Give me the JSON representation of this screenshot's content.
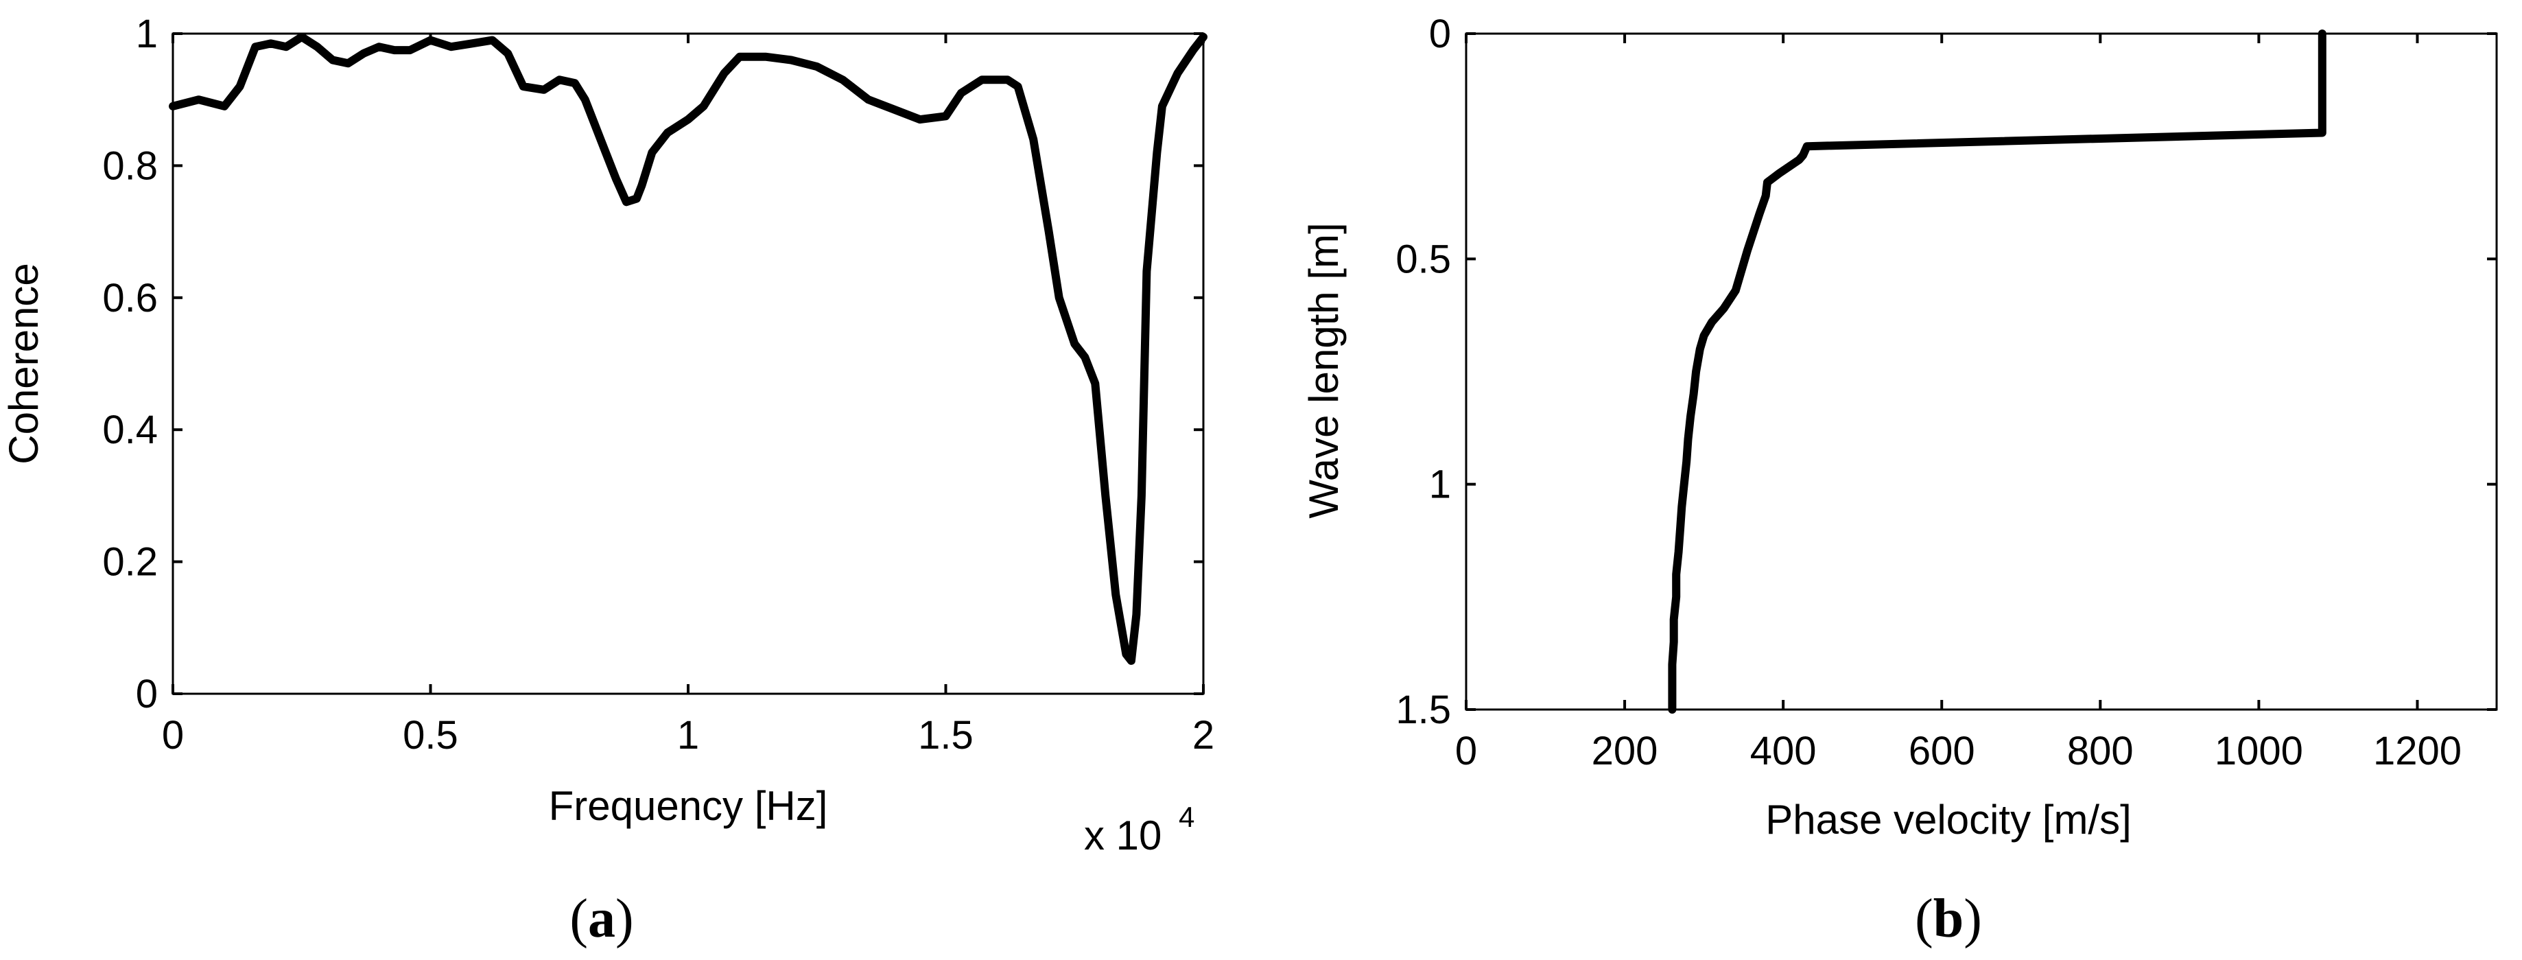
{
  "chart_data": [
    {
      "type": "line",
      "panel_label": "a",
      "title": "",
      "xlabel": "Frequency [Hz]",
      "ylabel": "Coherence",
      "x_multiplier_label": "x 10",
      "x_multiplier_exponent": "4",
      "xlim": [
        0,
        2
      ],
      "ylim": [
        0,
        1
      ],
      "xticks": [
        0,
        0.5,
        1,
        1.5,
        2
      ],
      "xtick_labels": [
        "0",
        "0.5",
        "1",
        "1.5",
        "2"
      ],
      "yticks": [
        0,
        0.2,
        0.4,
        0.6,
        0.8,
        1
      ],
      "ytick_labels": [
        "0",
        "0.2",
        "0.4",
        "0.6",
        "0.8",
        "1"
      ],
      "grid": false,
      "series": [
        {
          "color": "#000000",
          "x": [
            0,
            0.05,
            0.1,
            0.13,
            0.16,
            0.19,
            0.22,
            0.25,
            0.28,
            0.31,
            0.34,
            0.37,
            0.4,
            0.43,
            0.46,
            0.5,
            0.54,
            0.58,
            0.62,
            0.65,
            0.68,
            0.72,
            0.75,
            0.78,
            0.8,
            0.83,
            0.86,
            0.88,
            0.9,
            0.91,
            0.93,
            0.96,
            1.0,
            1.03,
            1.07,
            1.1,
            1.15,
            1.2,
            1.25,
            1.3,
            1.35,
            1.4,
            1.45,
            1.5,
            1.53,
            1.57,
            1.62,
            1.64,
            1.67,
            1.7,
            1.72,
            1.75,
            1.77,
            1.79,
            1.81,
            1.83,
            1.85,
            1.86,
            1.87,
            1.88,
            1.89,
            1.91,
            1.92,
            1.95,
            1.98,
            2.0
          ],
          "y": [
            0.89,
            0.9,
            0.89,
            0.92,
            0.98,
            0.985,
            0.98,
            0.995,
            0.98,
            0.96,
            0.955,
            0.97,
            0.98,
            0.975,
            0.975,
            0.99,
            0.98,
            0.985,
            0.99,
            0.97,
            0.92,
            0.915,
            0.93,
            0.925,
            0.9,
            0.84,
            0.78,
            0.745,
            0.75,
            0.77,
            0.82,
            0.85,
            0.87,
            0.89,
            0.94,
            0.965,
            0.965,
            0.96,
            0.95,
            0.93,
            0.9,
            0.885,
            0.87,
            0.875,
            0.91,
            0.93,
            0.93,
            0.92,
            0.84,
            0.7,
            0.6,
            0.53,
            0.51,
            0.47,
            0.3,
            0.15,
            0.06,
            0.05,
            0.12,
            0.3,
            0.64,
            0.82,
            0.89,
            0.94,
            0.975,
            0.995
          ]
        }
      ]
    },
    {
      "type": "line",
      "panel_label": "b",
      "title": "",
      "xlabel": "Phase velocity [m/s]",
      "ylabel": "Wave length [m]",
      "xlim": [
        0,
        1300
      ],
      "ylim": [
        0,
        1.5
      ],
      "y_reversed": true,
      "xticks": [
        0,
        200,
        400,
        600,
        800,
        1000,
        1200
      ],
      "xtick_labels": [
        "0",
        "200",
        "400",
        "600",
        "800",
        "1000",
        "1200"
      ],
      "yticks": [
        0,
        0.5,
        1,
        1.5
      ],
      "ytick_labels": [
        "0",
        "0.5",
        "1",
        "1.5"
      ],
      "grid": false,
      "series": [
        {
          "color": "#000000",
          "x": [
            1080,
            1080,
            430,
            425,
            420,
            395,
            380,
            378,
            370,
            355,
            340,
            325,
            310,
            300,
            295,
            290,
            287,
            283,
            280,
            278,
            275,
            272,
            270,
            268,
            265,
            265,
            262,
            262,
            260,
            260
          ],
          "y": [
            0,
            0.22,
            0.25,
            0.27,
            0.28,
            0.31,
            0.33,
            0.36,
            0.4,
            0.48,
            0.57,
            0.61,
            0.64,
            0.67,
            0.7,
            0.75,
            0.8,
            0.85,
            0.9,
            0.95,
            1.0,
            1.05,
            1.1,
            1.15,
            1.2,
            1.25,
            1.3,
            1.35,
            1.4,
            1.5
          ]
        }
      ]
    }
  ]
}
